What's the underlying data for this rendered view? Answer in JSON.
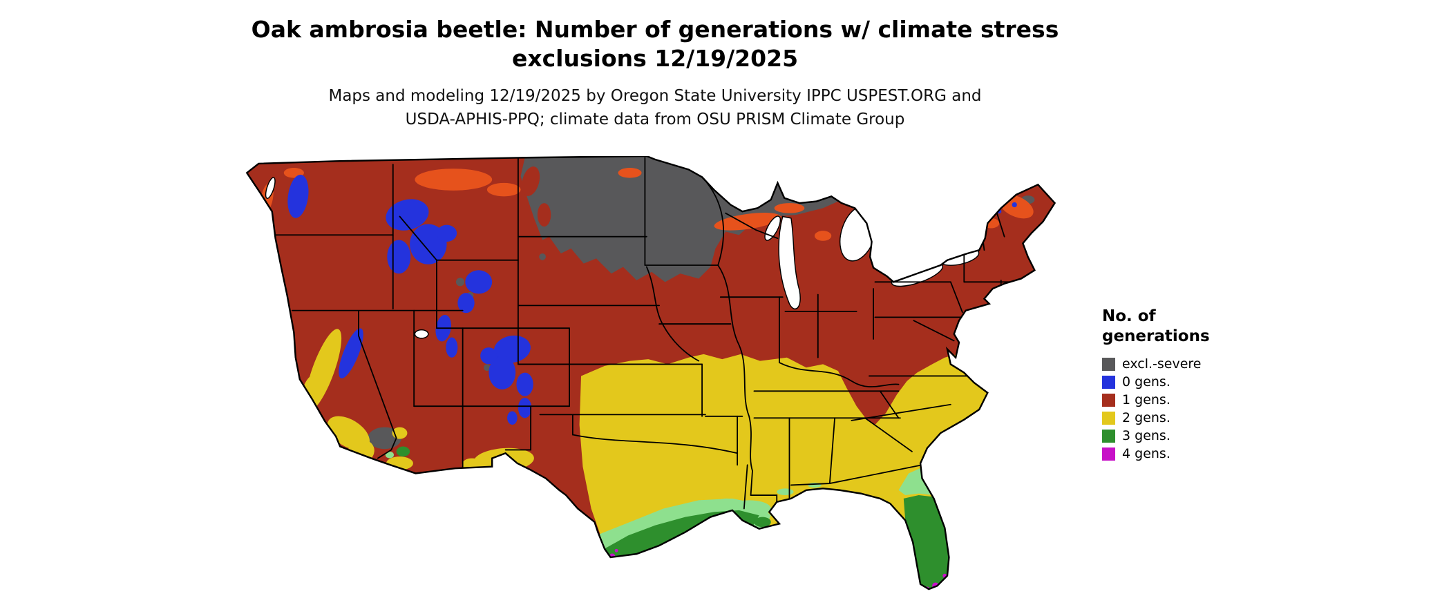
{
  "page": {
    "background": "#ffffff"
  },
  "title": {
    "line1": "Oak ambrosia beetle: Number of generations w/ climate stress",
    "line2": "exclusions 12/19/2025"
  },
  "subtitle": {
    "line1": "Maps and modeling 12/19/2025 by Oregon State University IPPC USPEST.ORG and",
    "line2": "USDA-APHIS-PPQ; climate data from OSU PRISM Climate Group"
  },
  "legend": {
    "title_line1": "No. of",
    "title_line2": "generations",
    "items": [
      {
        "key": "severe",
        "label": "excl.-severe",
        "color": "#58585a"
      },
      {
        "key": "g0",
        "label": "0 gens.",
        "color": "#2433dd"
      },
      {
        "key": "g1",
        "label": "1 gens.",
        "color": "#a52e1d"
      },
      {
        "key": "g2",
        "label": "2 gens.",
        "color": "#e3c81c"
      },
      {
        "key": "g3",
        "label": "3 gens.",
        "color": "#2e8f2d"
      },
      {
        "key": "g4",
        "label": "4 gens.",
        "color": "#c711c7"
      }
    ]
  },
  "map": {
    "region": "Continental United States",
    "extra_colors": {
      "orange": "#e6521c",
      "lightgreen": "#8ee08e",
      "water": "#ffffff",
      "border": "#000000"
    }
  }
}
